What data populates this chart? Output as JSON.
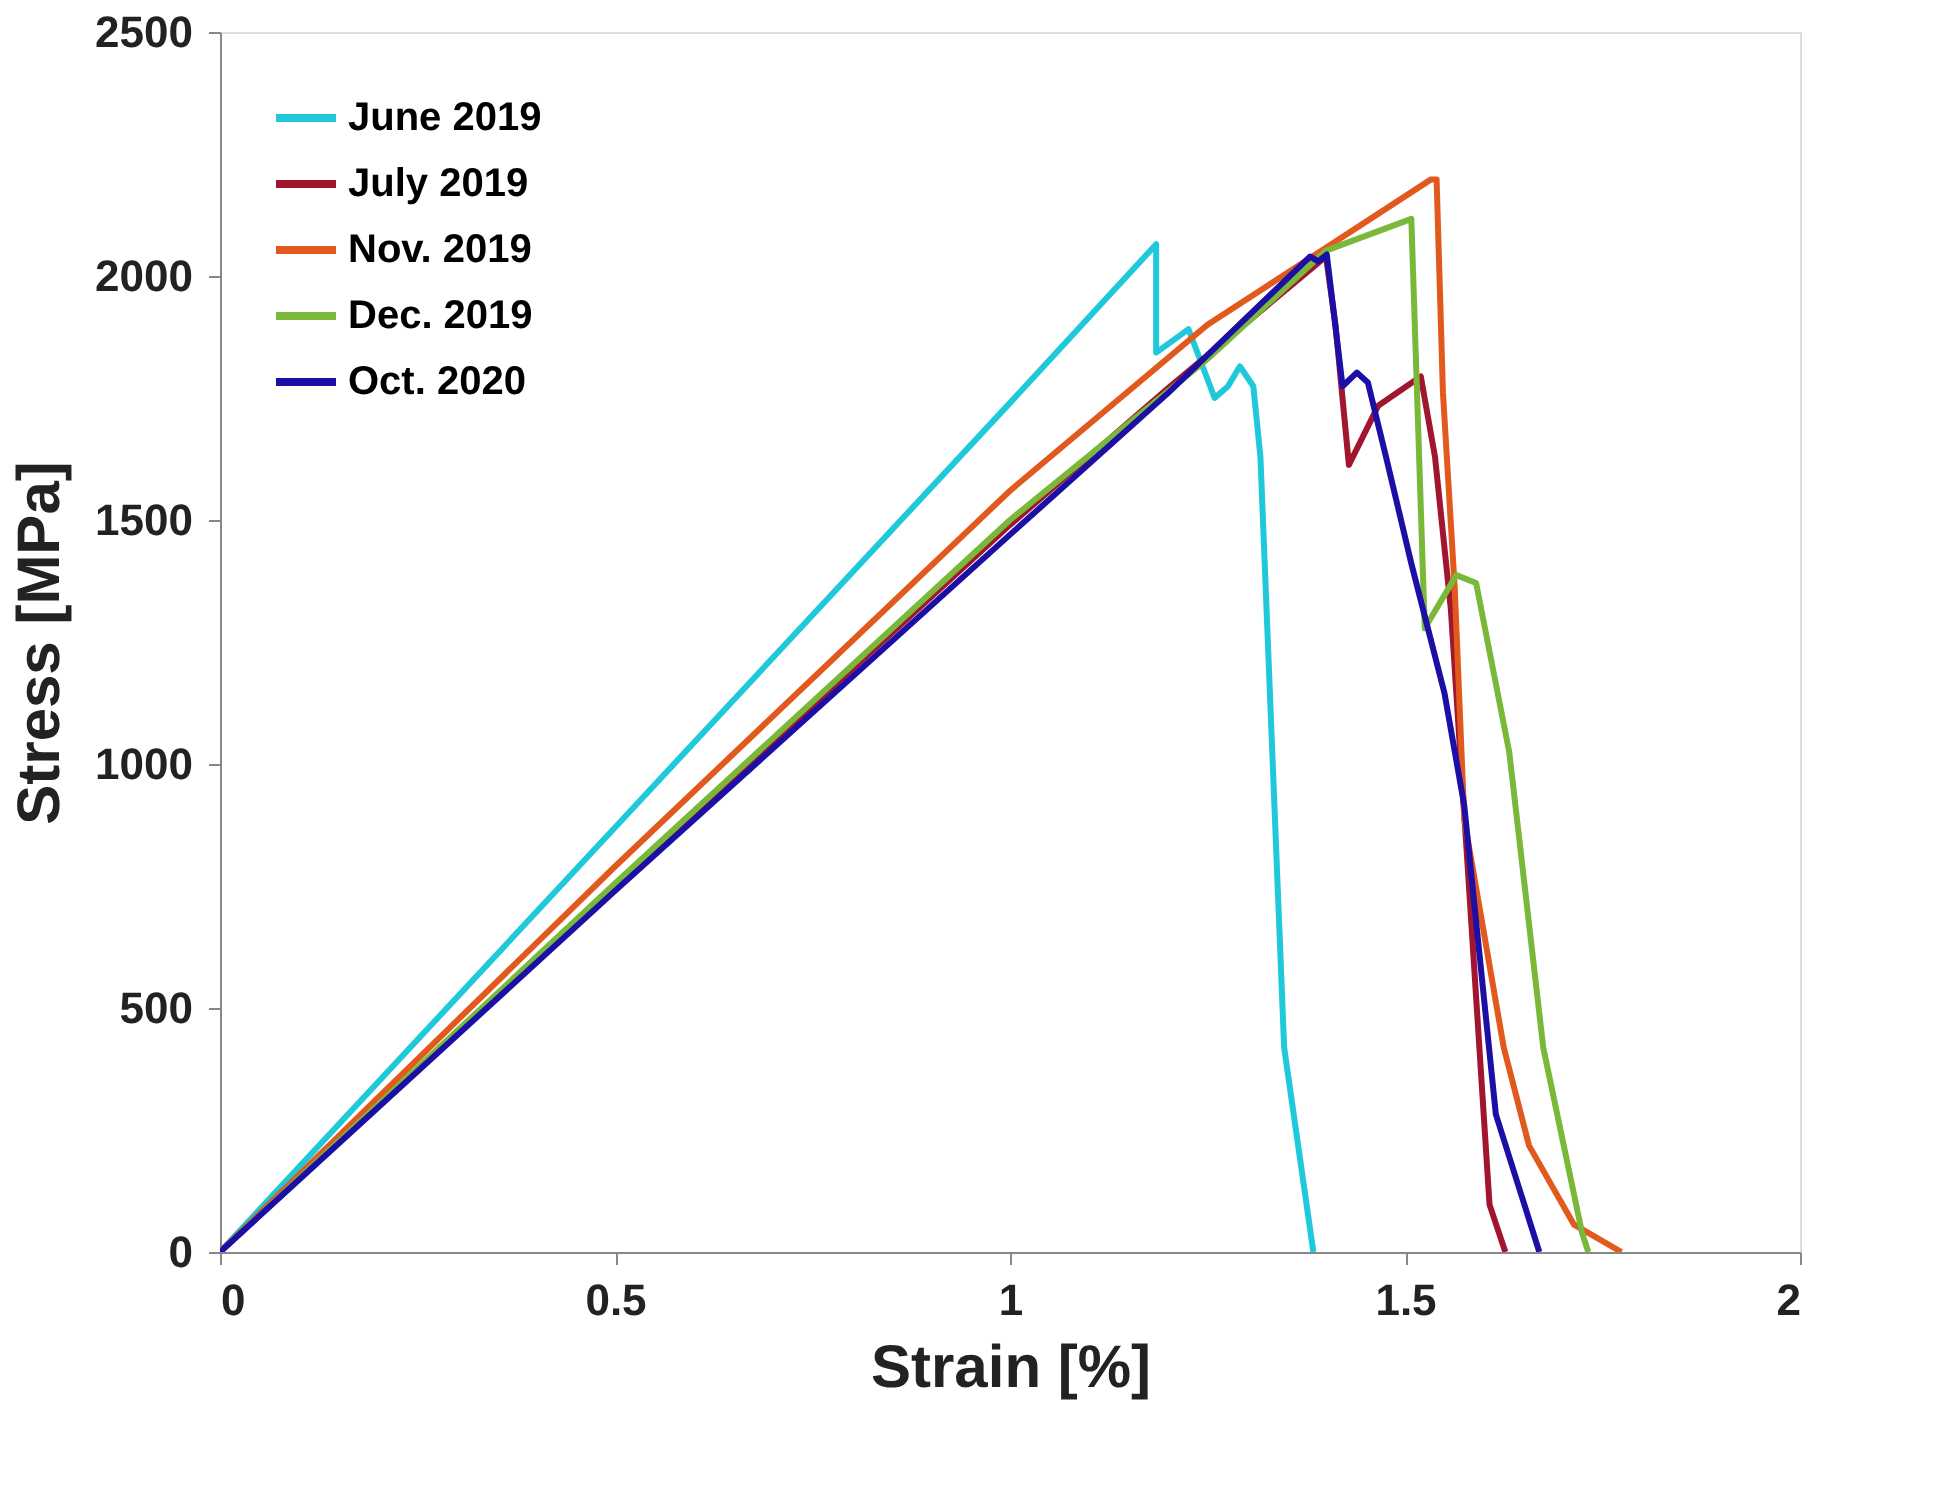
{
  "chart_data": {
    "type": "line",
    "xlabel": "Strain [%]",
    "ylabel": "Stress [MPa]",
    "xlim": [
      0,
      2
    ],
    "ylim": [
      0,
      2500
    ],
    "xticks": [
      0,
      0.5,
      1,
      1.5,
      2
    ],
    "yticks": [
      0,
      500,
      1000,
      1500,
      2000,
      2500
    ],
    "grid": false,
    "legend": "top left",
    "marker": "none",
    "line_style": "solid",
    "series": [
      {
        "name": "June 2019",
        "color": "#1fc9d9",
        "x": [
          0,
          0.5,
          1.0,
          1.185,
          1.185,
          1.226,
          1.259,
          1.276,
          1.291,
          1.308,
          1.317,
          1.327,
          1.347,
          1.384
        ],
        "values": [
          0,
          870,
          1740,
          2065,
          1843,
          1891,
          1750,
          1774,
          1815,
          1774,
          1629,
          1226,
          419,
          0
        ]
      },
      {
        "name": "July 2019",
        "color": "#a0162e",
        "x": [
          0,
          0.5,
          1.0,
          1.2,
          1.4,
          1.412,
          1.429,
          1.466,
          1.52,
          1.538,
          1.558,
          1.578,
          1.607,
          1.627
        ],
        "values": [
          0,
          750,
          1490,
          1770,
          2040,
          1900,
          1613,
          1734,
          1794,
          1629,
          1318,
          823,
          97,
          0
        ]
      },
      {
        "name": "Nov. 2019",
        "color": "#e2591e",
        "x": [
          0,
          0.5,
          1.0,
          1.25,
          1.533,
          1.54,
          1.548,
          1.563,
          1.575,
          1.625,
          1.657,
          1.714,
          1.774
        ],
        "values": [
          0,
          790,
          1560,
          1900,
          2198,
          2198,
          1762,
          1359,
          887,
          419,
          218,
          56,
          0
        ]
      },
      {
        "name": "Dec. 2019",
        "color": "#7ab83a",
        "x": [
          0,
          0.5,
          1.0,
          1.25,
          1.4,
          1.508,
          1.525,
          1.565,
          1.59,
          1.632,
          1.675,
          1.724,
          1.732
        ],
        "values": [
          0,
          755,
          1500,
          1830,
          2052,
          2117,
          1278,
          1387,
          1371,
          1024,
          419,
          40,
          0
        ]
      },
      {
        "name": "Oct. 2020",
        "color": "#1c0fa6",
        "x": [
          0,
          0.5,
          1.0,
          1.2,
          1.38,
          1.39,
          1.401,
          1.421,
          1.439,
          1.453,
          1.476,
          1.508,
          1.55,
          1.575,
          1.615,
          1.67
        ],
        "values": [
          0,
          740,
          1470,
          1760,
          2040,
          2030,
          2044,
          1774,
          1802,
          1782,
          1629,
          1411,
          1145,
          915,
          282,
          0
        ]
      }
    ]
  }
}
